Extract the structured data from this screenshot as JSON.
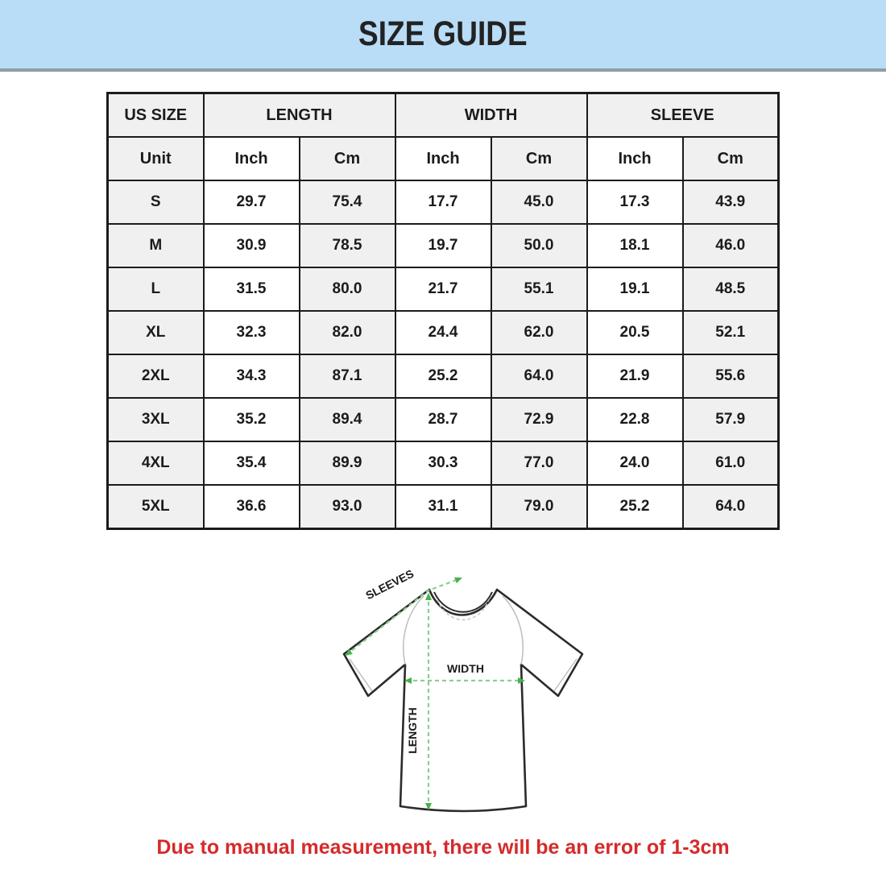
{
  "banner": {
    "title": "SIZE GUIDE"
  },
  "table": {
    "groups": [
      "US SIZE",
      "LENGTH",
      "WIDTH",
      "SLEEVE"
    ],
    "unit_row": [
      "Unit",
      "Inch",
      "Cm",
      "Inch",
      "Cm",
      "Inch",
      "Cm"
    ],
    "rows": [
      {
        "size": "S",
        "values": [
          "29.7",
          "75.4",
          "17.7",
          "45.0",
          "17.3",
          "43.9"
        ]
      },
      {
        "size": "M",
        "values": [
          "30.9",
          "78.5",
          "19.7",
          "50.0",
          "18.1",
          "46.0"
        ]
      },
      {
        "size": "L",
        "values": [
          "31.5",
          "80.0",
          "21.7",
          "55.1",
          "19.1",
          "48.5"
        ]
      },
      {
        "size": "XL",
        "values": [
          "32.3",
          "82.0",
          "24.4",
          "62.0",
          "20.5",
          "52.1"
        ]
      },
      {
        "size": "2XL",
        "values": [
          "34.3",
          "87.1",
          "25.2",
          "64.0",
          "21.9",
          "55.6"
        ]
      },
      {
        "size": "3XL",
        "values": [
          "35.2",
          "89.4",
          "28.7",
          "72.9",
          "22.8",
          "57.9"
        ]
      },
      {
        "size": "4XL",
        "values": [
          "35.4",
          "89.9",
          "30.3",
          "77.0",
          "24.0",
          "61.0"
        ]
      },
      {
        "size": "5XL",
        "values": [
          "36.6",
          "93.0",
          "31.1",
          "79.0",
          "25.2",
          "64.0"
        ]
      }
    ]
  },
  "diagram": {
    "labels": {
      "sleeves": "SLEEVES",
      "width": "WIDTH",
      "length": "LENGTH"
    }
  },
  "note": {
    "text": "Due to manual measurement, there will be an error of 1-3cm"
  },
  "colors": {
    "banner_bg": "#b9dcf7",
    "banner_line": "#8d9ea6",
    "cell_shade": "#f0f0f0",
    "table_border": "#1b1b1b",
    "note_red": "#d52a2a",
    "arrow_green_dash": "#8ccf8e",
    "arrow_green_head": "#46b14e",
    "shirt_outline": "#2b2b2b",
    "shirt_seam_gray": "#bdbdbd"
  }
}
